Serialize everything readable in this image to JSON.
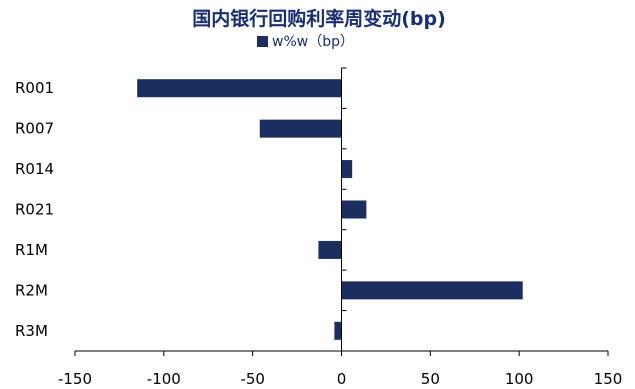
{
  "chart_data": {
    "type": "bar",
    "orientation": "horizontal",
    "title": "国内银行回购利率周变动(bp)",
    "legend_position": "top",
    "grid": false,
    "categories": [
      "R001",
      "R007",
      "R014",
      "R021",
      "R1M",
      "R2M",
      "R3M"
    ],
    "series": [
      {
        "name": "w%w（bp）",
        "color": "#1a2e5f",
        "values": [
          -115,
          -46,
          6,
          14,
          -13,
          102,
          -4
        ]
      }
    ],
    "xlim": [
      -150,
      150
    ],
    "xticks": [
      -150,
      -100,
      -50,
      0,
      50,
      100,
      150
    ],
    "xtick_labels": [
      "-150",
      "-100",
      "-50",
      "0",
      "50",
      "100",
      "150"
    ]
  }
}
